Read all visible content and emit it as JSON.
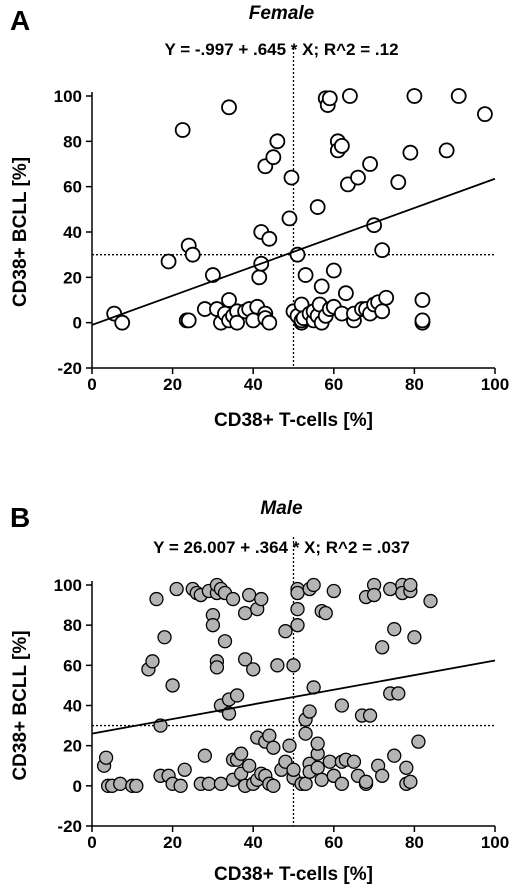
{
  "chart_data": [
    {
      "type": "scatter",
      "panel_label": "A",
      "title": "Female",
      "subtitle": "Y = -.997 + .645 * X; R^2 = .12",
      "xlabel": "CD38+ T-cells [%]",
      "ylabel": "CD38+ BCLL [%]",
      "xlim": [
        0,
        100
      ],
      "ylim": [
        -20,
        100
      ],
      "xticks": [
        0,
        20,
        40,
        60,
        80,
        100
      ],
      "yticks": [
        -20,
        0,
        20,
        40,
        60,
        80,
        100
      ],
      "grid": false,
      "marker": "open-circle",
      "marker_fill": "#ffffff",
      "regression": {
        "intercept": -0.997,
        "slope": 0.645
      },
      "reference_lines": {
        "x": 50,
        "y": 30
      },
      "points": [
        [
          5.5,
          4
        ],
        [
          7.5,
          0
        ],
        [
          19,
          27
        ],
        [
          22.5,
          85
        ],
        [
          23.5,
          1
        ],
        [
          24,
          1
        ],
        [
          24,
          34
        ],
        [
          25,
          30
        ],
        [
          28,
          6
        ],
        [
          30,
          21
        ],
        [
          31,
          6
        ],
        [
          32,
          0
        ],
        [
          33,
          4
        ],
        [
          34,
          95
        ],
        [
          34,
          10
        ],
        [
          34,
          1
        ],
        [
          35,
          3
        ],
        [
          36,
          5
        ],
        [
          36,
          0
        ],
        [
          38,
          5
        ],
        [
          39,
          6
        ],
        [
          40,
          1
        ],
        [
          41,
          7
        ],
        [
          41.5,
          20
        ],
        [
          42,
          26
        ],
        [
          42,
          40
        ],
        [
          43,
          4
        ],
        [
          43,
          69
        ],
        [
          43,
          2
        ],
        [
          44,
          0
        ],
        [
          44,
          37
        ],
        [
          45,
          73
        ],
        [
          46,
          80
        ],
        [
          49,
          46
        ],
        [
          49.5,
          64
        ],
        [
          50,
          5
        ],
        [
          51,
          30
        ],
        [
          51,
          3
        ],
        [
          52,
          0
        ],
        [
          52,
          1
        ],
        [
          52,
          8
        ],
        [
          52.5,
          2
        ],
        [
          53,
          21
        ],
        [
          54,
          4
        ],
        [
          55,
          1
        ],
        [
          55,
          5
        ],
        [
          56,
          3
        ],
        [
          56,
          51
        ],
        [
          56.5,
          8
        ],
        [
          57,
          0
        ],
        [
          57,
          16
        ],
        [
          58,
          99
        ],
        [
          58,
          3
        ],
        [
          58.5,
          96
        ],
        [
          59,
          99
        ],
        [
          59,
          6
        ],
        [
          60,
          7
        ],
        [
          60,
          23
        ],
        [
          61,
          80
        ],
        [
          61,
          76
        ],
        [
          62,
          78
        ],
        [
          62,
          4
        ],
        [
          63,
          13
        ],
        [
          63.5,
          61
        ],
        [
          64,
          100
        ],
        [
          65,
          1
        ],
        [
          65,
          4
        ],
        [
          66,
          64
        ],
        [
          67,
          6
        ],
        [
          68,
          6
        ],
        [
          69,
          4
        ],
        [
          69,
          70
        ],
        [
          70,
          43
        ],
        [
          70,
          8
        ],
        [
          71,
          9
        ],
        [
          72,
          32
        ],
        [
          72,
          5
        ],
        [
          73,
          11
        ],
        [
          76,
          62
        ],
        [
          79,
          75
        ],
        [
          80,
          100
        ],
        [
          82,
          10
        ],
        [
          82,
          0
        ],
        [
          82,
          1
        ],
        [
          88,
          76
        ],
        [
          91,
          100
        ],
        [
          97.5,
          92
        ]
      ]
    },
    {
      "type": "scatter",
      "panel_label": "B",
      "title": "Male",
      "subtitle": "Y = 26.007 + .364 * X; R^2 = .037",
      "xlabel": "CD38+ T-cells [%]",
      "ylabel": "CD38+ BCLL [%]",
      "xlim": [
        0,
        100
      ],
      "ylim": [
        -20,
        100
      ],
      "xticks": [
        0,
        20,
        40,
        60,
        80,
        100
      ],
      "yticks": [
        -20,
        0,
        20,
        40,
        60,
        80,
        100
      ],
      "grid": false,
      "marker": "filled-circle",
      "marker_fill": "#b4b4b4",
      "regression": {
        "intercept": 26.007,
        "slope": 0.364
      },
      "reference_lines": {
        "x": 50,
        "y": 30
      },
      "points": [
        [
          3,
          10
        ],
        [
          3.5,
          14
        ],
        [
          4,
          0
        ],
        [
          5,
          0
        ],
        [
          7,
          1
        ],
        [
          10,
          0
        ],
        [
          11,
          0
        ],
        [
          14,
          58
        ],
        [
          15,
          62
        ],
        [
          16,
          93
        ],
        [
          17,
          30
        ],
        [
          17,
          5
        ],
        [
          18,
          74
        ],
        [
          19,
          5
        ],
        [
          20,
          50
        ],
        [
          20,
          1
        ],
        [
          21,
          98
        ],
        [
          22,
          0
        ],
        [
          23,
          8
        ],
        [
          25,
          98
        ],
        [
          26,
          96
        ],
        [
          27,
          95
        ],
        [
          27,
          1
        ],
        [
          28,
          15
        ],
        [
          29,
          97
        ],
        [
          29,
          1
        ],
        [
          30,
          85
        ],
        [
          30,
          80
        ],
        [
          31,
          62
        ],
        [
          31,
          59
        ],
        [
          31,
          96
        ],
        [
          31,
          100
        ],
        [
          32,
          1
        ],
        [
          32,
          40
        ],
        [
          32,
          98
        ],
        [
          33,
          96
        ],
        [
          33,
          72
        ],
        [
          34,
          36
        ],
        [
          34,
          43
        ],
        [
          35,
          13
        ],
        [
          35,
          3
        ],
        [
          35,
          93
        ],
        [
          36,
          45
        ],
        [
          36,
          13
        ],
        [
          37,
          6
        ],
        [
          37,
          16
        ],
        [
          38,
          63
        ],
        [
          38,
          0
        ],
        [
          38,
          86
        ],
        [
          39,
          10
        ],
        [
          39,
          95
        ],
        [
          40,
          58
        ],
        [
          40,
          1
        ],
        [
          41,
          3
        ],
        [
          41,
          88
        ],
        [
          41,
          24
        ],
        [
          42,
          93
        ],
        [
          42,
          6
        ],
        [
          43,
          5
        ],
        [
          43,
          22
        ],
        [
          44,
          25
        ],
        [
          44,
          1
        ],
        [
          45,
          0
        ],
        [
          45,
          19
        ],
        [
          46,
          60
        ],
        [
          47,
          8
        ],
        [
          48,
          12
        ],
        [
          48,
          77
        ],
        [
          49,
          20
        ],
        [
          50,
          4
        ],
        [
          50,
          8
        ],
        [
          50,
          60
        ],
        [
          51,
          98
        ],
        [
          51,
          88
        ],
        [
          51,
          80
        ],
        [
          51,
          96
        ],
        [
          52,
          1
        ],
        [
          53,
          1
        ],
        [
          53,
          33
        ],
        [
          53,
          26
        ],
        [
          54,
          11
        ],
        [
          54,
          7
        ],
        [
          54,
          98
        ],
        [
          54,
          37
        ],
        [
          55,
          49
        ],
        [
          55,
          100
        ],
        [
          56,
          16
        ],
        [
          56,
          21
        ],
        [
          56,
          9
        ],
        [
          57,
          87
        ],
        [
          57,
          3
        ],
        [
          58,
          86
        ],
        [
          59,
          12
        ],
        [
          60,
          5
        ],
        [
          60,
          5
        ],
        [
          60,
          97
        ],
        [
          62,
          12
        ],
        [
          62,
          1
        ],
        [
          62,
          40
        ],
        [
          63,
          13
        ],
        [
          65,
          12
        ],
        [
          66,
          5
        ],
        [
          67,
          35
        ],
        [
          68,
          94
        ],
        [
          68,
          1
        ],
        [
          68,
          2
        ],
        [
          69,
          35
        ],
        [
          70,
          100
        ],
        [
          70,
          95
        ],
        [
          71,
          10
        ],
        [
          72,
          5
        ],
        [
          72,
          69
        ],
        [
          74,
          98
        ],
        [
          74,
          46
        ],
        [
          75,
          78
        ],
        [
          75,
          15
        ],
        [
          76,
          46
        ],
        [
          77,
          100
        ],
        [
          77,
          96
        ],
        [
          78,
          1
        ],
        [
          78,
          9
        ],
        [
          79,
          97
        ],
        [
          79,
          100
        ],
        [
          79,
          2
        ],
        [
          80,
          74
        ],
        [
          81,
          22
        ],
        [
          84,
          92
        ]
      ]
    }
  ]
}
